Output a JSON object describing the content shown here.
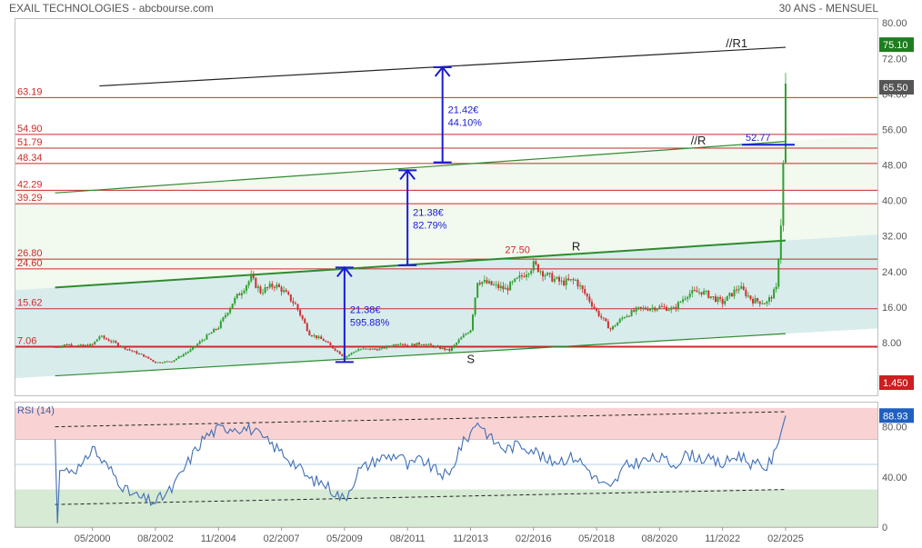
{
  "header": {
    "title": "EXAIL TECHNOLOGIES - abcbourse.com",
    "period": "30 ANS - MENSUEL"
  },
  "colors": {
    "up_candle": "#2ea02e",
    "down_candle": "#d03030",
    "level_line": "#cc2a2a",
    "channel_line": "#2e8b2e",
    "measure_arrow": "#1a1ad6",
    "rsi_line": "#3f6fb5",
    "rsi_overbought_zone": "#f9d3d3",
    "rsi_oversold_zone": "#d6ead4",
    "price_badge_last": "#1e7d1e",
    "price_badge_prev": "#555555",
    "low_badge": "#cc1f1f",
    "rsi_badge": "#1f5fbf"
  },
  "chart_data": [
    {
      "type": "candlestick",
      "title": "EXAIL TECHNOLOGIES - abcbourse.com",
      "subtitle": "30 ANS - MENSUEL",
      "x_tick_labels": [
        "05/2000",
        "08/2002",
        "11/2004",
        "02/2007",
        "05/2009",
        "08/2011",
        "11/2013",
        "02/2016",
        "05/2018",
        "08/2020",
        "11/2022",
        "02/2025"
      ],
      "y_ticks": [
        "8.00",
        "16.00",
        "24.00",
        "32.00",
        "40.00",
        "48.00",
        "56.00",
        "64.00",
        "72.00",
        "80.00"
      ],
      "ylim": [
        0,
        82
      ],
      "price_path": [
        [
          "01/1999",
          7.0
        ],
        [
          "06/1999",
          7.6
        ],
        [
          "01/2000",
          7.2
        ],
        [
          "05/2000",
          7.5
        ],
        [
          "08/2000",
          9.4
        ],
        [
          "01/2001",
          8.3
        ],
        [
          "08/2001",
          6.5
        ],
        [
          "03/2002",
          5.0
        ],
        [
          "08/2002",
          3.5
        ],
        [
          "03/2003",
          3.8
        ],
        [
          "11/2003",
          6.3
        ],
        [
          "05/2004",
          9.0
        ],
        [
          "11/2004",
          11.5
        ],
        [
          "05/2005",
          17.0
        ],
        [
          "01/2006",
          22.5
        ],
        [
          "05/2006",
          19.5
        ],
        [
          "11/2006",
          21.0
        ],
        [
          "02/2007",
          20.0
        ],
        [
          "08/2007",
          16.5
        ],
        [
          "02/2008",
          10.0
        ],
        [
          "08/2008",
          8.5
        ],
        [
          "02/2009",
          6.0
        ],
        [
          "05/2009",
          4.7
        ],
        [
          "11/2009",
          6.5
        ],
        [
          "08/2010",
          6.5
        ],
        [
          "05/2011",
          8.0
        ],
        [
          "08/2011",
          7.3
        ],
        [
          "02/2012",
          7.8
        ],
        [
          "08/2012",
          7.0
        ],
        [
          "02/2013",
          6.2
        ],
        [
          "06/2013",
          8.5
        ],
        [
          "11/2013",
          11.0
        ],
        [
          "02/2014",
          22.0
        ],
        [
          "08/2014",
          21.0
        ],
        [
          "02/2015",
          20.0
        ],
        [
          "08/2015",
          22.5
        ],
        [
          "02/2016",
          25.5
        ],
        [
          "08/2016",
          23.0
        ],
        [
          "02/2017",
          21.5
        ],
        [
          "08/2017",
          22.0
        ],
        [
          "02/2018",
          17.5
        ],
        [
          "05/2018",
          15.0
        ],
        [
          "11/2018",
          11.0
        ],
        [
          "05/2019",
          14.0
        ],
        [
          "11/2019",
          15.5
        ],
        [
          "08/2020",
          16.0
        ],
        [
          "02/2021",
          15.5
        ],
        [
          "08/2021",
          19.0
        ],
        [
          "02/2022",
          19.5
        ],
        [
          "11/2022",
          17.0
        ],
        [
          "06/2023",
          20.5
        ],
        [
          "12/2023",
          17.5
        ],
        [
          "06/2024",
          17.0
        ],
        [
          "10/2024",
          20.0
        ],
        [
          "12/2024",
          35.0
        ],
        [
          "01/2025",
          48.0
        ],
        [
          "02/2025",
          65.5
        ]
      ],
      "horizontal_levels": [
        {
          "label": "63.19",
          "value": 63.19
        },
        {
          "label": "54.90",
          "value": 54.9
        },
        {
          "label": "51.79",
          "value": 51.79
        },
        {
          "label": "48.34",
          "value": 48.34
        },
        {
          "label": "42.29",
          "value": 42.29
        },
        {
          "label": "39.29",
          "value": 39.29
        },
        {
          "label": "26.80",
          "value": 26.8
        },
        {
          "label": "24.60",
          "value": 24.6
        },
        {
          "label": "15.62",
          "value": 15.62
        },
        {
          "label": "7.06",
          "value": 7.06
        }
      ],
      "trendlines": [
        {
          "label": "//R1",
          "color": "#222222",
          "from": [
            "08/2000",
            65.8
          ],
          "to": [
            "02/2025",
            74.5
          ]
        },
        {
          "label": "//R",
          "color": "#2e8b2e",
          "from": [
            "01/1999",
            41.7
          ],
          "to": [
            "02/2025",
            53.3
          ]
        },
        {
          "label": "R",
          "color": "#2e8b2e",
          "from": [
            "01/1999",
            20.4
          ],
          "to": [
            "02/2025",
            31.0
          ]
        },
        {
          "label": "S",
          "color": "#2e8b2e",
          "from": [
            "01/1999",
            0.5
          ],
          "to": [
            "02/2025",
            10.0
          ]
        }
      ],
      "measurements": [
        {
          "text": [
            "21.38€",
            "595.88%"
          ],
          "at": "05/2009",
          "from": 3.6,
          "to": 24.9
        },
        {
          "text": [
            "21.38€",
            "82.79%"
          ],
          "at": "08/2011",
          "from": 25.4,
          "to": 46.8
        },
        {
          "text": [
            "21.42€",
            "44.10%"
          ],
          "at": "11/2012",
          "from": 48.6,
          "to": 70.0
        }
      ],
      "annotations": [
        {
          "text": "27.50",
          "at": "08/2015",
          "value": 27.5
        },
        {
          "text": "52.77",
          "at": "02/2025",
          "value": 52.77
        }
      ],
      "price_badges": [
        {
          "text": "75.10",
          "value": 75.1,
          "role": "last"
        },
        {
          "text": "65.50",
          "value": 65.5,
          "role": "prev"
        },
        {
          "text": "1.450",
          "value": 1.45,
          "role": "low"
        }
      ]
    },
    {
      "type": "line",
      "title": "RSI (14)",
      "y_ticks": [
        "0",
        "40.00",
        "80.00"
      ],
      "ylim": [
        0,
        95
      ],
      "bands": [
        {
          "from": 70,
          "to": 95
        },
        {
          "from": 0,
          "to": 30
        }
      ],
      "midlines": [
        50
      ],
      "rsi_path": [
        [
          "01/1999",
          70
        ],
        [
          "02/1999",
          3
        ],
        [
          "03/1999",
          45
        ],
        [
          "01/2000",
          48
        ],
        [
          "05/2000",
          65
        ],
        [
          "08/2000",
          55
        ],
        [
          "01/2001",
          45
        ],
        [
          "08/2001",
          28
        ],
        [
          "03/2002",
          22
        ],
        [
          "08/2002",
          20
        ],
        [
          "03/2003",
          30
        ],
        [
          "11/2003",
          55
        ],
        [
          "05/2004",
          72
        ],
        [
          "11/2004",
          78
        ],
        [
          "05/2005",
          80
        ],
        [
          "01/2006",
          78
        ],
        [
          "05/2006",
          72
        ],
        [
          "02/2007",
          60
        ],
        [
          "08/2007",
          50
        ],
        [
          "02/2008",
          38
        ],
        [
          "08/2008",
          35
        ],
        [
          "02/2009",
          26
        ],
        [
          "05/2009",
          22
        ],
        [
          "11/2009",
          45
        ],
        [
          "08/2010",
          55
        ],
        [
          "05/2011",
          58
        ],
        [
          "08/2011",
          48
        ],
        [
          "02/2012",
          54
        ],
        [
          "08/2012",
          45
        ],
        [
          "02/2013",
          40
        ],
        [
          "06/2013",
          62
        ],
        [
          "11/2013",
          75
        ],
        [
          "02/2014",
          85
        ],
        [
          "08/2014",
          70
        ],
        [
          "02/2015",
          62
        ],
        [
          "08/2015",
          66
        ],
        [
          "02/2016",
          62
        ],
        [
          "08/2016",
          52
        ],
        [
          "02/2017",
          54
        ],
        [
          "08/2017",
          56
        ],
        [
          "02/2018",
          45
        ],
        [
          "05/2018",
          38
        ],
        [
          "11/2018",
          30
        ],
        [
          "05/2019",
          48
        ],
        [
          "11/2019",
          52
        ],
        [
          "08/2020",
          55
        ],
        [
          "02/2021",
          50
        ],
        [
          "08/2021",
          58
        ],
        [
          "02/2022",
          55
        ],
        [
          "11/2022",
          50
        ],
        [
          "06/2023",
          58
        ],
        [
          "12/2023",
          50
        ],
        [
          "06/2024",
          48
        ],
        [
          "10/2024",
          60
        ],
        [
          "12/2024",
          75
        ],
        [
          "01/2025",
          82
        ],
        [
          "02/2025",
          88.9
        ]
      ],
      "dashed_trendlines": [
        {
          "from": [
            "01/1999",
            80
          ],
          "to": [
            "02/2025",
            92
          ]
        },
        {
          "from": [
            "01/1999",
            18
          ],
          "to": [
            "02/2025",
            30
          ]
        }
      ],
      "value_badge": {
        "text": "88.93",
        "value": 88.93
      }
    }
  ]
}
